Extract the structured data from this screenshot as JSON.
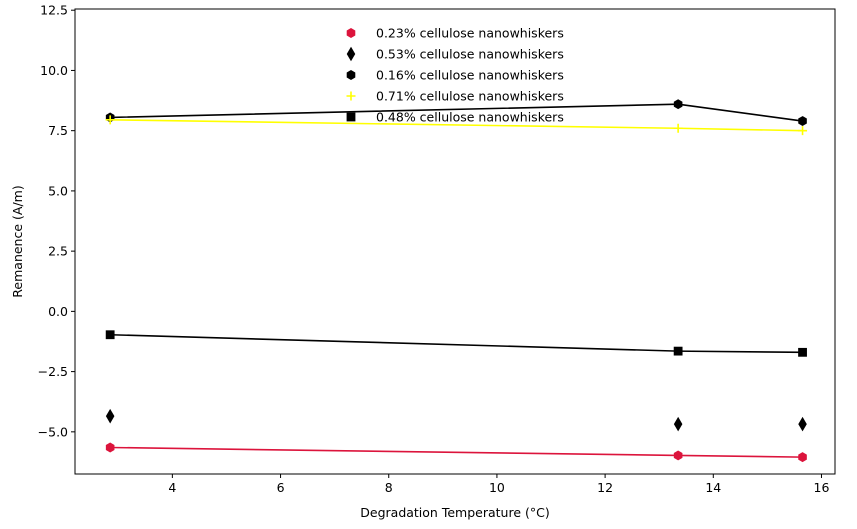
{
  "chart_data": {
    "type": "line",
    "title": "",
    "xlabel": "Degradation Temperature (°C)",
    "ylabel": "Remanence (A/m)",
    "xlim": [
      2.2,
      16.25
    ],
    "ylim": [
      -6.75,
      12.55
    ],
    "xticks": [
      4,
      6,
      8,
      10,
      12,
      14,
      16
    ],
    "yticks": [
      -5.0,
      -2.5,
      0.0,
      2.5,
      5.0,
      7.5,
      10.0,
      12.5
    ],
    "xtick_labels": [
      "4",
      "6",
      "8",
      "10",
      "12",
      "14",
      "16"
    ],
    "ytick_labels": [
      "−5.0",
      "−2.5",
      "0.0",
      "2.5",
      "5.0",
      "7.5",
      "10.0",
      "12.5"
    ],
    "grid": false,
    "legend_position": "top-center",
    "x": [
      2.85,
      13.35,
      15.65
    ],
    "series": [
      {
        "name": "0.23% cellulose nanowhiskers",
        "values": [
          -5.65,
          -5.98,
          -6.05
        ],
        "color": "#dc143c",
        "marker": "hexagon",
        "line": true
      },
      {
        "name": "0.53% cellulose nanowhiskers",
        "values": [
          -4.35,
          -4.68,
          -4.68
        ],
        "color": "#000000",
        "marker": "thin_diamond",
        "line": false
      },
      {
        "name": "0.16% cellulose nanowhiskers",
        "values": [
          8.05,
          8.6,
          7.9
        ],
        "color": "#000000",
        "marker": "hexagon",
        "line": true
      },
      {
        "name": "0.71% cellulose nanowhiskers",
        "values": [
          7.95,
          7.6,
          7.5
        ],
        "color": "#ffff00",
        "marker": "plus",
        "line": true
      },
      {
        "name": "0.48% cellulose nanowhiskers",
        "values": [
          -0.97,
          -1.65,
          -1.7
        ],
        "color": "#000000",
        "marker": "square",
        "line": true
      }
    ]
  }
}
